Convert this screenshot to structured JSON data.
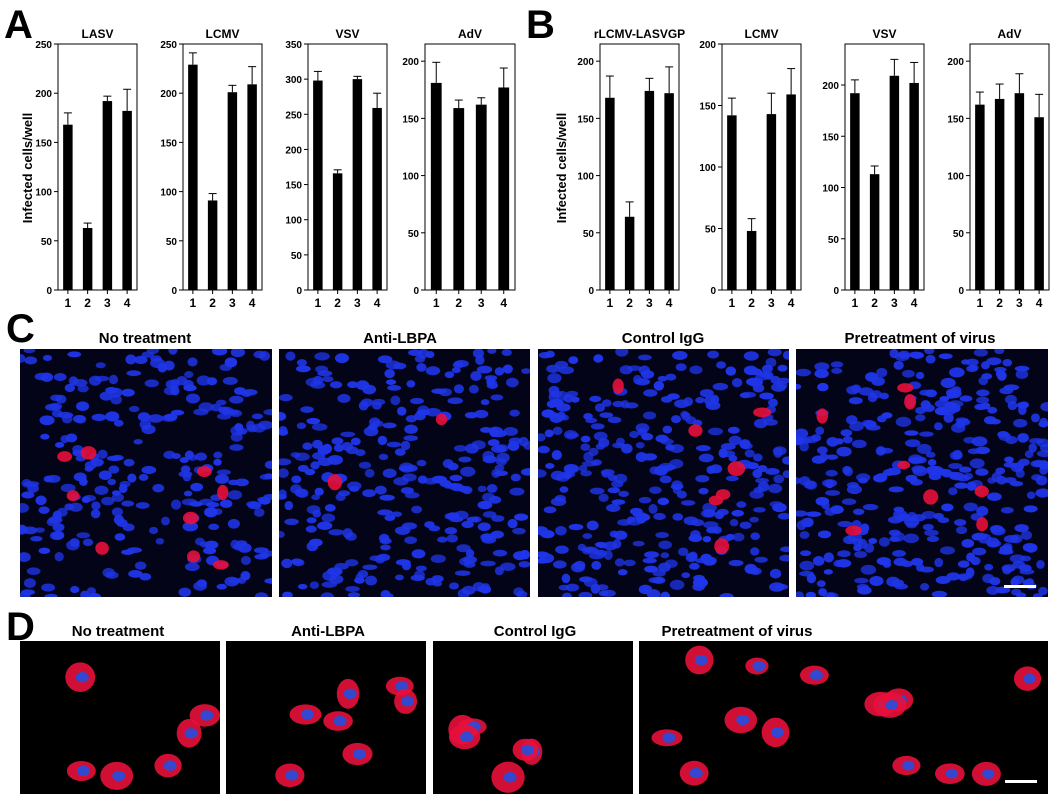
{
  "panels": {
    "A": {
      "letter": "A",
      "ylabel": "Infected cells/well",
      "charts": [
        {
          "title": "LASV",
          "yticks": [
            0,
            50,
            100,
            150,
            200,
            250
          ],
          "ylim": [
            0,
            250
          ],
          "categories": [
            "1",
            "2",
            "3",
            "4"
          ],
          "values": [
            168,
            63,
            192,
            182
          ],
          "errors": [
            12,
            5,
            5,
            22
          ]
        },
        {
          "title": "LCMV",
          "yticks": [
            0,
            50,
            100,
            150,
            200,
            250
          ],
          "ylim": [
            0,
            250
          ],
          "categories": [
            "1",
            "2",
            "3",
            "4"
          ],
          "values": [
            229,
            91,
            201,
            209
          ],
          "errors": [
            12,
            7,
            7,
            18
          ]
        },
        {
          "title": "VSV",
          "yticks": [
            0,
            50,
            100,
            150,
            200,
            250,
            300,
            350
          ],
          "ylim": [
            0,
            350
          ],
          "categories": [
            "1",
            "2",
            "3",
            "4"
          ],
          "values": [
            298,
            166,
            300,
            259
          ],
          "errors": [
            13,
            5,
            4,
            21
          ]
        },
        {
          "title": "AdV",
          "yticks": [
            0,
            50,
            100,
            150,
            200
          ],
          "ylim": [
            0,
            215
          ],
          "categories": [
            "1",
            "2",
            "3",
            "4"
          ],
          "values": [
            181,
            159,
            162,
            177
          ],
          "errors": [
            18,
            7,
            6,
            17
          ]
        }
      ]
    },
    "B": {
      "letter": "B",
      "ylabel": "Infected cells/well",
      "charts": [
        {
          "title": "rLCMV-LASVGP",
          "yticks": [
            0,
            50,
            100,
            150,
            200
          ],
          "ylim": [
            0,
            215
          ],
          "categories": [
            "1",
            "2",
            "3",
            "4"
          ],
          "values": [
            168,
            64,
            174,
            172
          ],
          "errors": [
            19,
            13,
            11,
            23
          ]
        },
        {
          "title": "LCMV",
          "yticks": [
            0,
            50,
            100,
            150,
            200
          ],
          "ylim": [
            0,
            200
          ],
          "categories": [
            "1",
            "2",
            "3",
            "4"
          ],
          "values": [
            142,
            48,
            143,
            159
          ],
          "errors": [
            14,
            10,
            17,
            21
          ]
        },
        {
          "title": "VSV",
          "yticks": [
            0,
            50,
            100,
            150,
            200
          ],
          "ylim": [
            0,
            240
          ],
          "categories": [
            "1",
            "2",
            "3",
            "4"
          ],
          "values": [
            192,
            113,
            209,
            202
          ],
          "errors": [
            13,
            8,
            16,
            20
          ]
        },
        {
          "title": "AdV",
          "yticks": [
            0,
            50,
            100,
            150,
            200
          ],
          "ylim": [
            0,
            215
          ],
          "categories": [
            "1",
            "2",
            "3",
            "4"
          ],
          "values": [
            162,
            167,
            172,
            151
          ],
          "errors": [
            11,
            13,
            17,
            20
          ]
        }
      ]
    },
    "C": {
      "letter": "C",
      "labels": [
        "No treatment",
        "Anti-LBPA",
        "Control IgG",
        "Pretreatment of virus"
      ]
    },
    "D": {
      "letter": "D",
      "labels": [
        "No treatment",
        "Anti-LBPA",
        "Control IgG",
        "Pretreatment of virus"
      ]
    }
  },
  "chart_data": [
    {
      "type": "bar",
      "title": "LASV",
      "ylabel": "Infected cells/well",
      "categories": [
        "1",
        "2",
        "3",
        "4"
      ],
      "values": [
        168,
        63,
        192,
        182
      ],
      "ylim": [
        0,
        250
      ]
    },
    {
      "type": "bar",
      "title": "LCMV",
      "categories": [
        "1",
        "2",
        "3",
        "4"
      ],
      "values": [
        229,
        91,
        201,
        209
      ],
      "ylim": [
        0,
        250
      ]
    },
    {
      "type": "bar",
      "title": "VSV",
      "categories": [
        "1",
        "2",
        "3",
        "4"
      ],
      "values": [
        298,
        166,
        300,
        259
      ],
      "ylim": [
        0,
        350
      ]
    },
    {
      "type": "bar",
      "title": "AdV",
      "categories": [
        "1",
        "2",
        "3",
        "4"
      ],
      "values": [
        181,
        159,
        162,
        177
      ],
      "ylim": [
        0,
        215
      ]
    },
    {
      "type": "bar",
      "title": "rLCMV-LASVGP",
      "ylabel": "Infected cells/well",
      "categories": [
        "1",
        "2",
        "3",
        "4"
      ],
      "values": [
        168,
        64,
        174,
        172
      ],
      "ylim": [
        0,
        215
      ]
    },
    {
      "type": "bar",
      "title": "LCMV",
      "categories": [
        "1",
        "2",
        "3",
        "4"
      ],
      "values": [
        142,
        48,
        143,
        159
      ],
      "ylim": [
        0,
        200
      ]
    },
    {
      "type": "bar",
      "title": "VSV",
      "categories": [
        "1",
        "2",
        "3",
        "4"
      ],
      "values": [
        192,
        113,
        209,
        202
      ],
      "ylim": [
        0,
        240
      ]
    },
    {
      "type": "bar",
      "title": "AdV",
      "categories": [
        "1",
        "2",
        "3",
        "4"
      ],
      "values": [
        162,
        167,
        172,
        151
      ],
      "ylim": [
        0,
        215
      ]
    }
  ]
}
